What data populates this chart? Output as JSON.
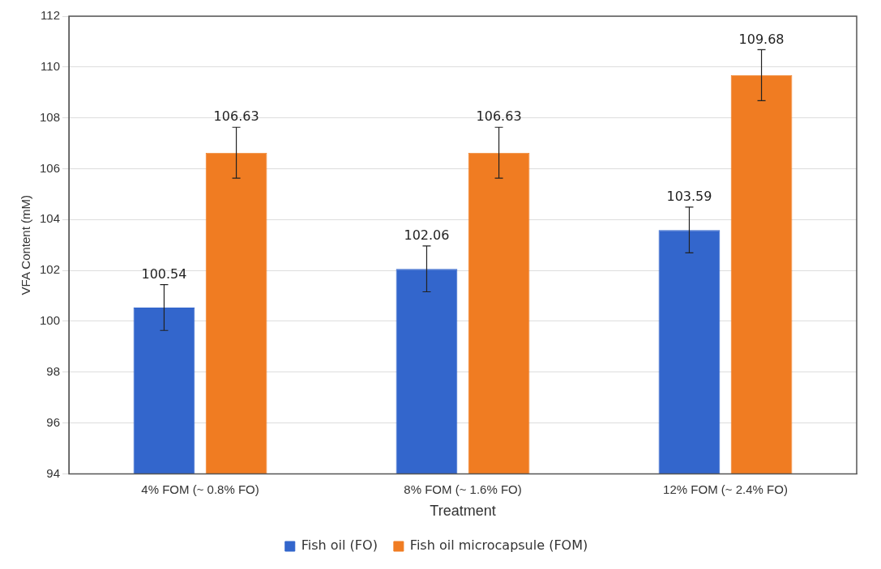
{
  "chart_data": {
    "type": "bar",
    "xlabel": "Treatment",
    "ylabel": "VFA Content (mM)",
    "categories": [
      "4% FOM (~ 0.8% FO)",
      "8% FOM (~ 1.6% FO)",
      "12% FOM (~ 2.4% FO)"
    ],
    "series": [
      {
        "name": "Fish oil (FO)",
        "color": "#3366cc",
        "values": [
          100.54,
          102.06,
          103.59
        ],
        "errors": [
          0.9,
          0.9,
          0.9
        ]
      },
      {
        "name": "Fish oil microcapsule (FOM)",
        "color": "#f07c22",
        "values": [
          106.63,
          106.63,
          109.68
        ],
        "errors": [
          1.0,
          1.0,
          1.0
        ]
      }
    ],
    "ylim": [
      94,
      112
    ],
    "yticks": [
      94,
      96,
      98,
      100,
      102,
      104,
      106,
      108,
      110,
      112
    ],
    "grid": "y",
    "legend": "bottom",
    "data_labels": true
  }
}
